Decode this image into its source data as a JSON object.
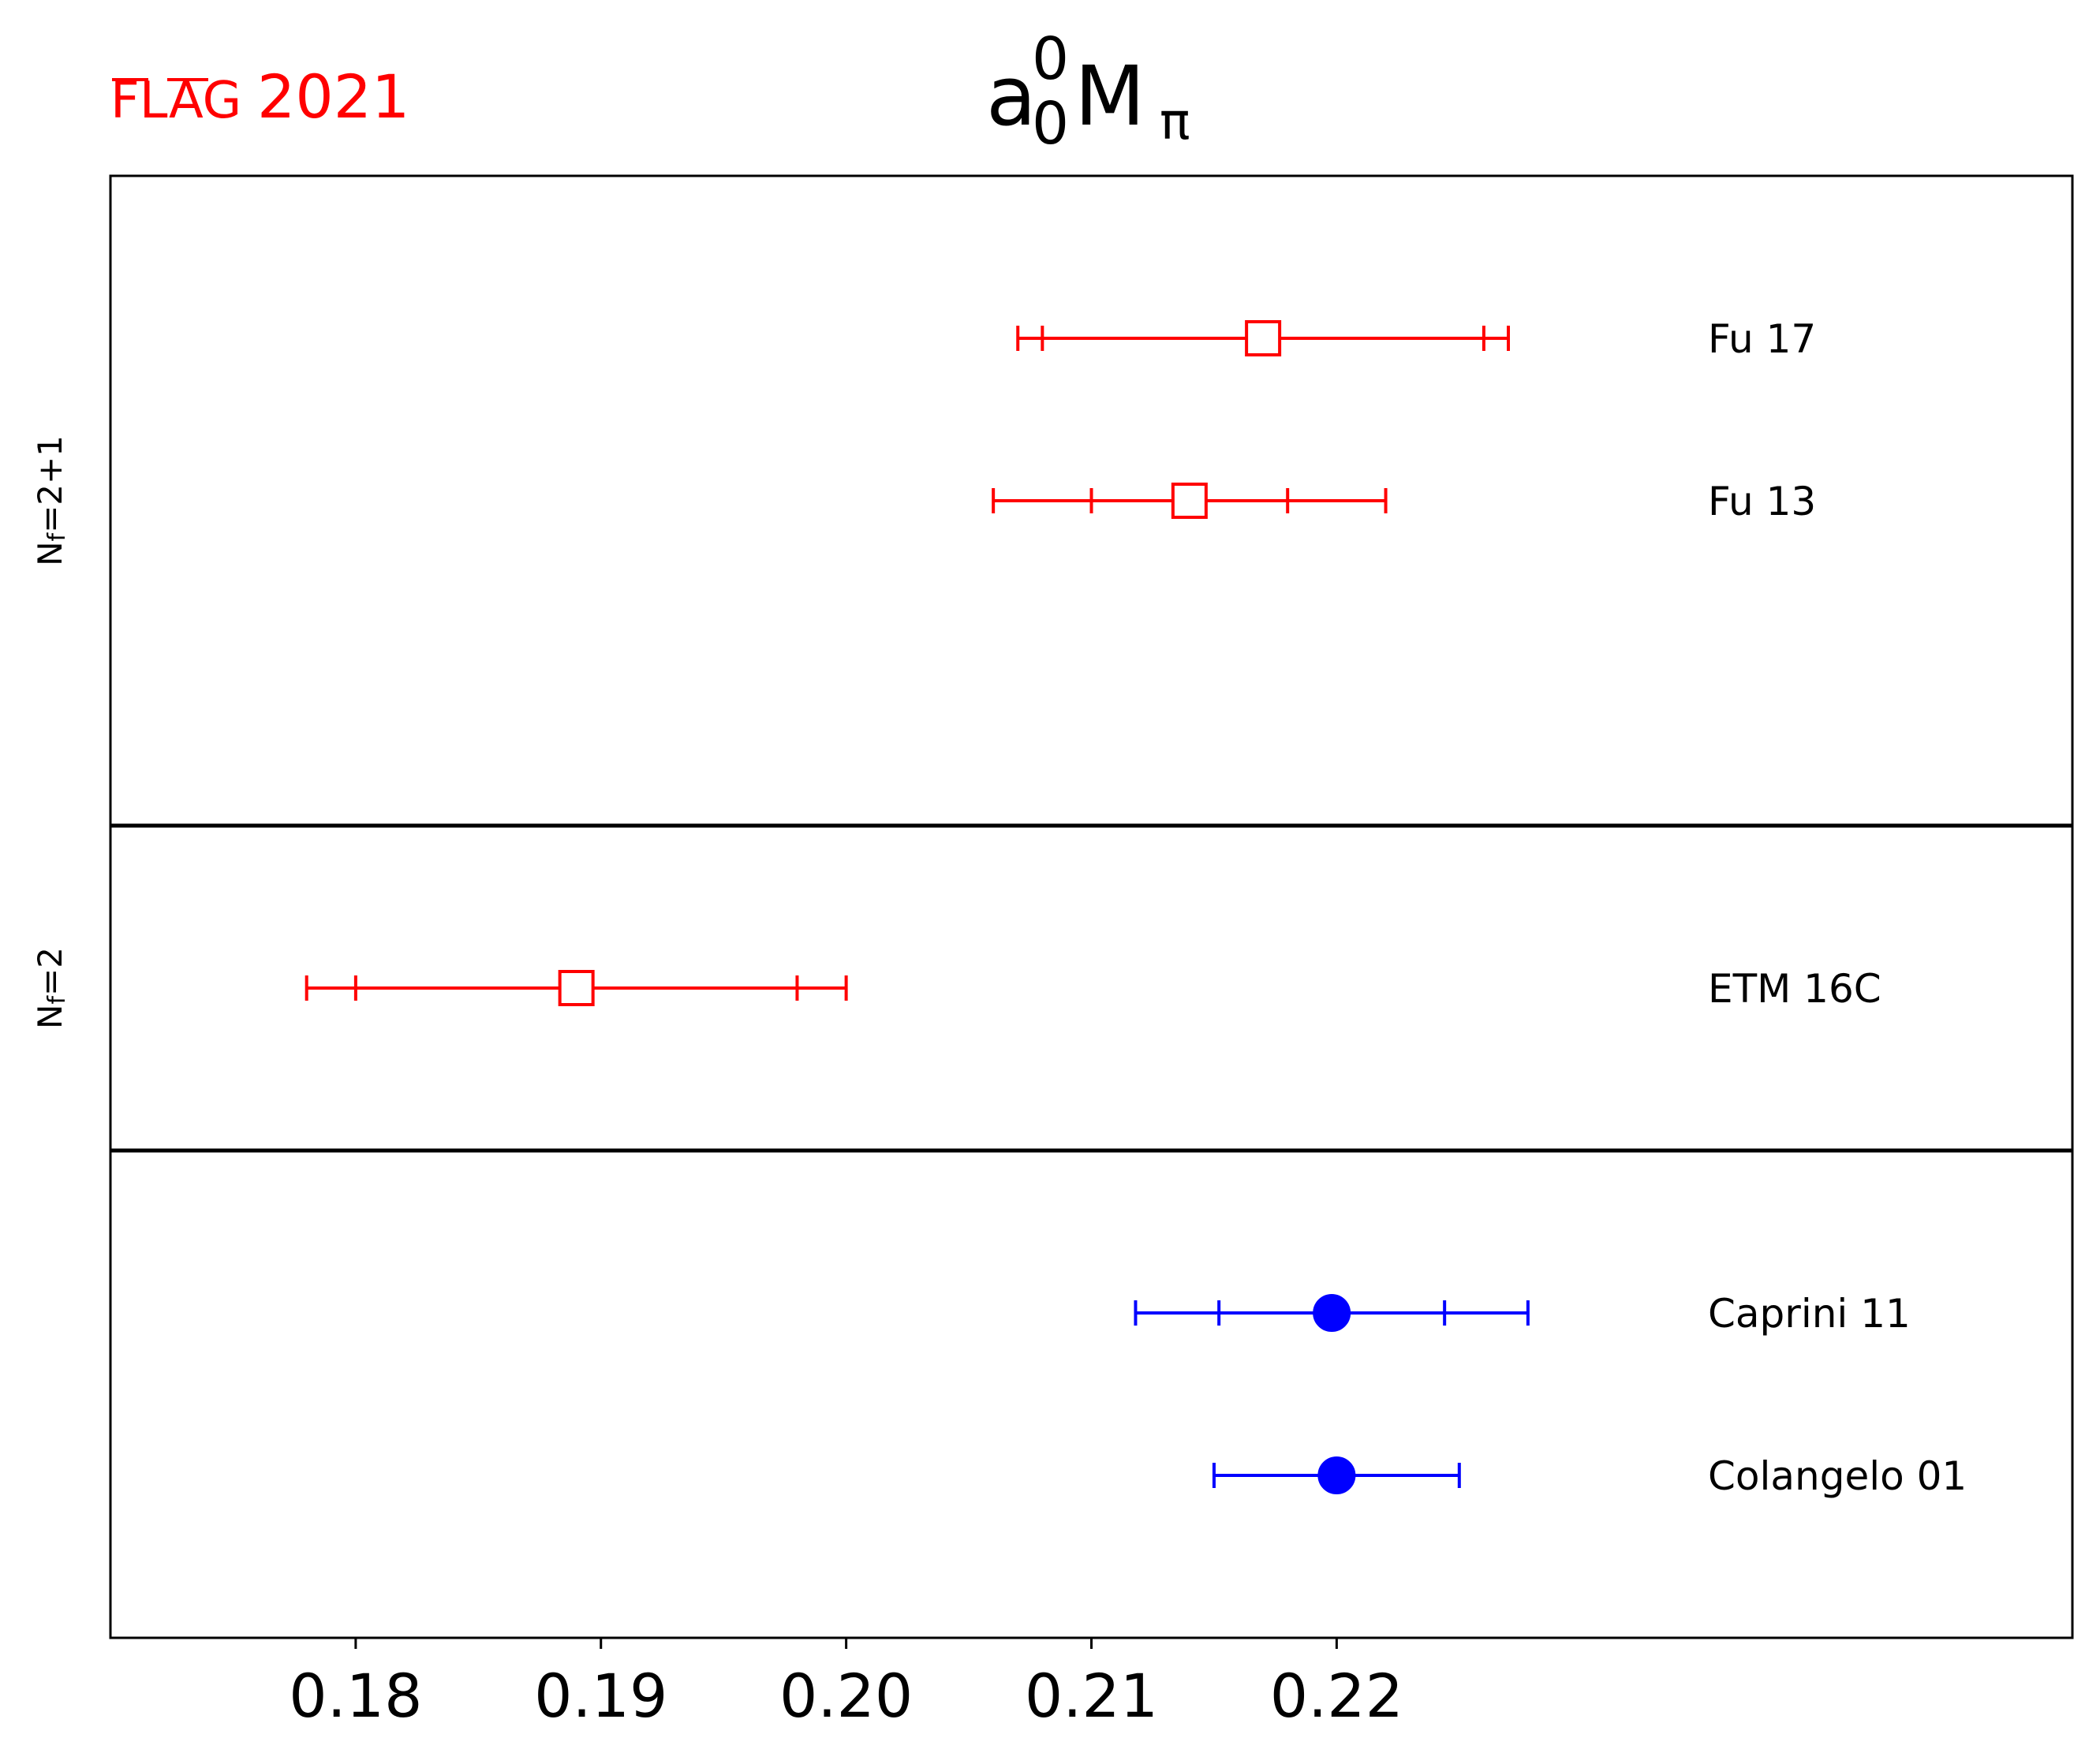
{
  "watermark": {
    "flag_text": "FLAG",
    "year_text": "2021",
    "color": "#ff0000"
  },
  "chart_data": {
    "type": "scatter",
    "title": {
      "base": "a",
      "superscript": "0",
      "subscript": "0",
      "main": "M",
      "main_subscript": "π"
    },
    "xlabel": "",
    "ylabel": "",
    "xlim": [
      0.17,
      0.25
    ],
    "x_ticks": [
      0.18,
      0.19,
      0.2,
      0.21,
      0.22
    ],
    "x_tick_labels": [
      "0.18",
      "0.19",
      "0.20",
      "0.21",
      "0.22"
    ],
    "grid": false,
    "groups": [
      {
        "label": {
          "main": "N",
          "sub": "f",
          "rest": "=2+1"
        },
        "rows": 4
      },
      {
        "label": {
          "main": "N",
          "sub": "f",
          "rest": "=2"
        },
        "rows": 2
      },
      {
        "label": null,
        "rows": 3
      }
    ],
    "points": [
      {
        "name": "Fu 17",
        "group": 0,
        "row": 1,
        "value": 0.217,
        "stat_err": [
          0.009,
          0.009
        ],
        "total_err": [
          0.01,
          0.01
        ],
        "color": "#ff0000",
        "marker": "open-square"
      },
      {
        "name": "Fu 13",
        "group": 0,
        "row": 2,
        "value": 0.214,
        "stat_err": [
          0.004,
          0.004
        ],
        "total_err": [
          0.008,
          0.008
        ],
        "color": "#ff0000",
        "marker": "open-square"
      },
      {
        "name": "ETM 16C",
        "group": 1,
        "row": 1,
        "value": 0.189,
        "stat_err": [
          0.009,
          0.009
        ],
        "total_err": [
          0.011,
          0.011
        ],
        "color": "#ff0000",
        "marker": "open-square"
      },
      {
        "name": "Caprini 11",
        "group": 2,
        "row": 1,
        "value": 0.2198,
        "stat_err": [
          0.0046,
          0.0046
        ],
        "total_err": [
          0.008,
          0.008
        ],
        "color": "#0000ff",
        "marker": "filled-circle"
      },
      {
        "name": "Colangelo 01",
        "group": 2,
        "row": 2,
        "value": 0.22,
        "stat_err": [
          0.005,
          0.005
        ],
        "total_err": [
          0.005,
          0.005
        ],
        "color": "#0000ff",
        "marker": "filled-circle"
      }
    ]
  }
}
